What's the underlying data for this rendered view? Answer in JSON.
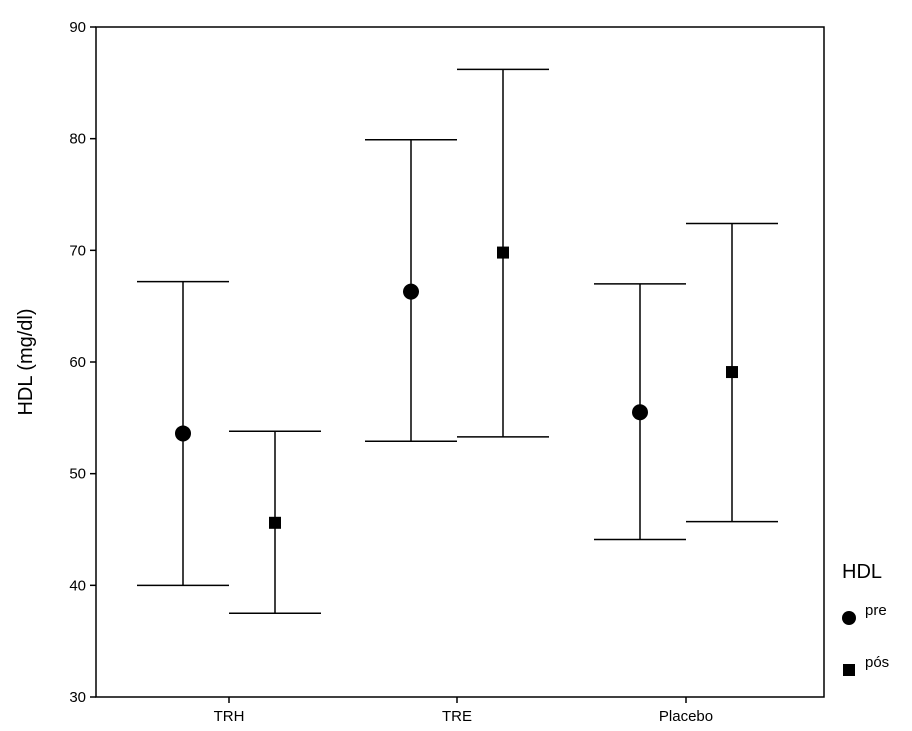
{
  "chart_data": {
    "type": "scatter",
    "subtype": "error-bar",
    "title": "",
    "xlabel": "",
    "ylabel": "HDL (mg/dl)",
    "categories": [
      "TRH",
      "TRE",
      "Placebo"
    ],
    "ylim": [
      30,
      90
    ],
    "yticks": [
      30,
      40,
      50,
      60,
      70,
      80,
      90
    ],
    "grid": false,
    "legend": {
      "title": "HDL",
      "placement": "right"
    },
    "series": [
      {
        "name": "pre",
        "marker": "circle",
        "color": "#000000",
        "values": [
          53.6,
          66.3,
          55.5
        ],
        "lower": [
          40.0,
          52.9,
          44.1
        ],
        "upper": [
          67.2,
          79.9,
          67.0
        ]
      },
      {
        "name": "pós",
        "marker": "square",
        "color": "#000000",
        "values": [
          45.6,
          69.8,
          59.1
        ],
        "lower": [
          37.5,
          53.3,
          45.7
        ],
        "upper": [
          53.8,
          86.2,
          72.4
        ]
      }
    ]
  }
}
